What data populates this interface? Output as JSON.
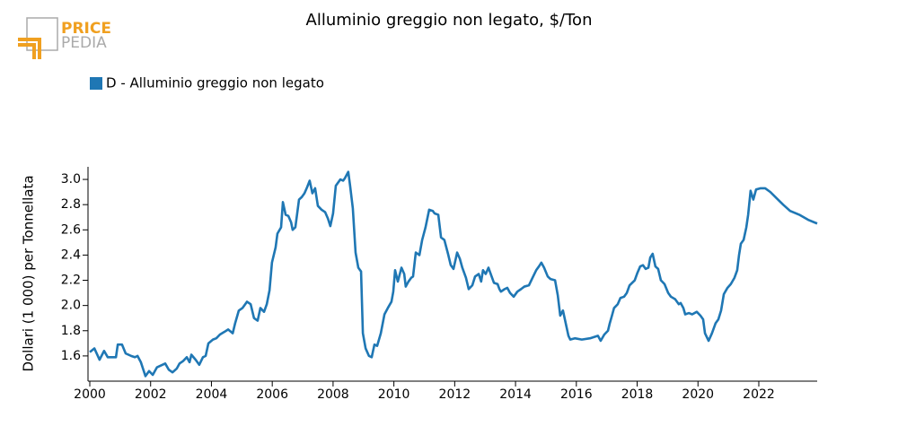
{
  "chart_data": {
    "type": "line",
    "title": "Alluminio greggio non legato, $/Ton",
    "logo_text": [
      "PRICE",
      "PEDIA"
    ],
    "y_label": "Dollari (1 000) per Tonnellata",
    "legend": "top-left",
    "x": [
      2000.0,
      2000.15,
      2000.32,
      2000.47,
      2000.59,
      2000.86,
      2000.92,
      2001.06,
      2001.18,
      2001.36,
      2001.48,
      2001.57,
      2001.68,
      2001.83,
      2001.95,
      2002.07,
      2002.21,
      2002.48,
      2002.6,
      2002.72,
      2002.86,
      2002.95,
      2003.07,
      2003.19,
      2003.28,
      2003.34,
      2003.48,
      2003.6,
      2003.72,
      2003.81,
      2003.9,
      2004.05,
      2004.16,
      2004.28,
      2004.42,
      2004.55,
      2004.7,
      2004.78,
      2004.9,
      2005.02,
      2005.17,
      2005.29,
      2005.4,
      2005.52,
      2005.61,
      2005.73,
      2005.82,
      2005.91,
      2005.99,
      2006.11,
      2006.17,
      2006.29,
      2006.35,
      2006.44,
      2006.53,
      2006.62,
      2006.67,
      2006.76,
      2006.88,
      2006.97,
      2007.06,
      2007.15,
      2007.23,
      2007.32,
      2007.41,
      2007.5,
      2007.62,
      2007.74,
      2007.83,
      2007.91,
      2008.0,
      2008.09,
      2008.24,
      2008.33,
      2008.39,
      2008.5,
      2008.56,
      2008.65,
      2008.74,
      2008.83,
      2008.92,
      2008.98,
      2009.07,
      2009.18,
      2009.27,
      2009.36,
      2009.45,
      2009.57,
      2009.69,
      2009.8,
      2009.92,
      2009.98,
      2010.04,
      2010.13,
      2010.25,
      2010.34,
      2010.39,
      2010.48,
      2010.57,
      2010.63,
      2010.72,
      2010.84,
      2010.93,
      2011.04,
      2011.16,
      2011.28,
      2011.34,
      2011.46,
      2011.55,
      2011.66,
      2011.78,
      2011.87,
      2011.96,
      2012.08,
      2012.17,
      2012.25,
      2012.37,
      2012.46,
      2012.58,
      2012.67,
      2012.79,
      2012.87,
      2012.93,
      2013.02,
      2013.11,
      2013.2,
      2013.29,
      2013.41,
      2013.47,
      2013.52,
      2013.64,
      2013.73,
      2013.82,
      2013.94,
      2014.06,
      2014.18,
      2014.29,
      2014.44,
      2014.56,
      2014.68,
      2014.77,
      2014.85,
      2014.94,
      2015.06,
      2015.15,
      2015.3,
      2015.39,
      2015.47,
      2015.56,
      2015.65,
      2015.74,
      2015.8,
      2015.95,
      2016.18,
      2016.45,
      2016.71,
      2016.8,
      2016.92,
      2017.04,
      2017.1,
      2017.16,
      2017.24,
      2017.36,
      2017.45,
      2017.57,
      2017.66,
      2017.75,
      2017.92,
      2018.01,
      2018.1,
      2018.19,
      2018.28,
      2018.37,
      2018.43,
      2018.51,
      2018.6,
      2018.69,
      2018.78,
      2018.9,
      2019.02,
      2019.11,
      2019.25,
      2019.37,
      2019.43,
      2019.52,
      2019.58,
      2019.7,
      2019.81,
      2019.96,
      2020.08,
      2020.17,
      2020.23,
      2020.35,
      2020.46,
      2020.58,
      2020.67,
      2020.76,
      2020.85,
      2020.97,
      2021.08,
      2021.2,
      2021.29,
      2021.35,
      2021.41,
      2021.5,
      2021.59,
      2021.65,
      2021.73,
      2021.82,
      2021.91,
      2022.06,
      2022.21,
      2022.38,
      2022.59,
      2022.8,
      2023.03,
      2023.33,
      2023.62,
      2023.92
    ],
    "series": [
      {
        "name": "D - Alluminio greggio non legato",
        "color": "#1f77b4",
        "values": [
          1.63,
          1.66,
          1.57,
          1.64,
          1.59,
          1.59,
          1.69,
          1.69,
          1.62,
          1.6,
          1.59,
          1.6,
          1.55,
          1.44,
          1.48,
          1.45,
          1.51,
          1.54,
          1.49,
          1.47,
          1.5,
          1.54,
          1.56,
          1.59,
          1.55,
          1.61,
          1.57,
          1.53,
          1.59,
          1.6,
          1.7,
          1.73,
          1.74,
          1.77,
          1.79,
          1.81,
          1.78,
          1.86,
          1.96,
          1.98,
          2.03,
          2.01,
          1.9,
          1.88,
          1.98,
          1.95,
          2.01,
          2.12,
          2.34,
          2.46,
          2.57,
          2.62,
          2.82,
          2.72,
          2.71,
          2.66,
          2.6,
          2.62,
          2.84,
          2.86,
          2.89,
          2.94,
          2.99,
          2.89,
          2.93,
          2.79,
          2.76,
          2.74,
          2.69,
          2.63,
          2.73,
          2.95,
          3.0,
          2.99,
          3.01,
          3.06,
          2.95,
          2.77,
          2.42,
          2.3,
          2.27,
          1.78,
          1.66,
          1.6,
          1.59,
          1.69,
          1.68,
          1.78,
          1.93,
          1.98,
          2.03,
          2.11,
          2.28,
          2.19,
          2.3,
          2.25,
          2.15,
          2.19,
          2.22,
          2.23,
          2.42,
          2.4,
          2.52,
          2.62,
          2.76,
          2.75,
          2.73,
          2.72,
          2.54,
          2.52,
          2.41,
          2.32,
          2.29,
          2.42,
          2.37,
          2.3,
          2.22,
          2.13,
          2.16,
          2.23,
          2.25,
          2.19,
          2.28,
          2.25,
          2.3,
          2.24,
          2.18,
          2.17,
          2.13,
          2.11,
          2.13,
          2.14,
          2.1,
          2.07,
          2.11,
          2.13,
          2.15,
          2.16,
          2.22,
          2.28,
          2.31,
          2.34,
          2.3,
          2.23,
          2.21,
          2.2,
          2.08,
          1.92,
          1.96,
          1.86,
          1.76,
          1.73,
          1.74,
          1.73,
          1.74,
          1.76,
          1.72,
          1.77,
          1.8,
          1.86,
          1.91,
          1.98,
          2.01,
          2.06,
          2.07,
          2.1,
          2.16,
          2.2,
          2.26,
          2.31,
          2.32,
          2.29,
          2.3,
          2.38,
          2.41,
          2.31,
          2.29,
          2.2,
          2.17,
          2.1,
          2.07,
          2.05,
          2.01,
          2.02,
          1.98,
          1.93,
          1.94,
          1.93,
          1.95,
          1.92,
          1.89,
          1.78,
          1.72,
          1.78,
          1.86,
          1.89,
          1.96,
          2.09,
          2.14,
          2.17,
          2.22,
          2.28,
          2.4,
          2.49,
          2.52,
          2.62,
          2.72,
          2.91,
          2.84,
          2.92,
          2.93,
          2.93,
          2.9,
          2.85,
          2.8,
          2.75,
          2.72,
          2.68,
          2.65
        ]
      }
    ],
    "xlim": [
      2000,
      2023.92
    ],
    "xticks": [
      2000,
      2002,
      2004,
      2006,
      2008,
      2010,
      2012,
      2014,
      2016,
      2018,
      2020,
      2022
    ],
    "ylim": [
      1.4,
      3.1
    ],
    "yticks": [
      1.6,
      1.8,
      {
        "value": 2,
        "label": "2.0"
      },
      2.2,
      2.4,
      2.6,
      2.8,
      {
        "value": 3,
        "label": "3.0"
      }
    ],
    "grid": false
  }
}
